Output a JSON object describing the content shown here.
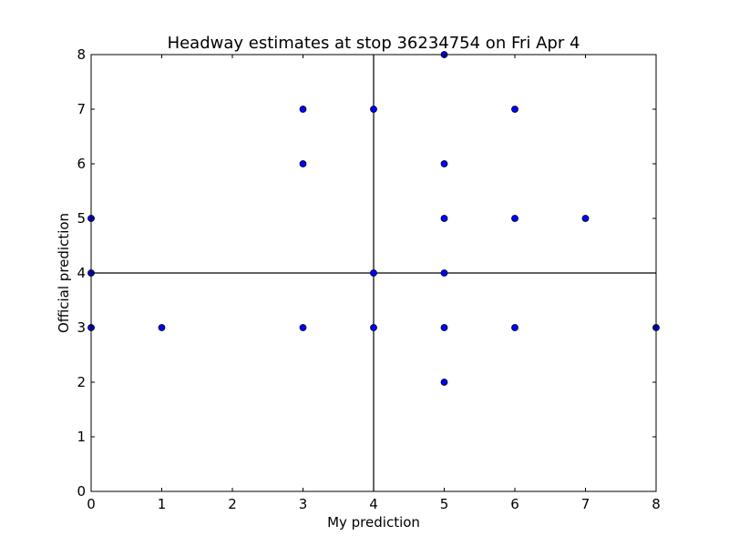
{
  "chart_data": {
    "type": "scatter",
    "title": "Headway estimates at stop 36234754 on Fri Apr 4",
    "xlabel": "My prediction",
    "ylabel": "Official prediction",
    "xlim": [
      0,
      8
    ],
    "ylim": [
      0,
      8
    ],
    "xticks": [
      "0",
      "1",
      "2",
      "3",
      "4",
      "5",
      "6",
      "7",
      "8"
    ],
    "yticks": [
      "0",
      "1",
      "2",
      "3",
      "4",
      "5",
      "6",
      "7",
      "8"
    ],
    "grid": false,
    "reference_lines": {
      "x": 4,
      "y": 4
    },
    "point_color": "#0000ff",
    "point_edge_color": "#000000",
    "points": [
      {
        "x": 0,
        "y": 5
      },
      {
        "x": 0,
        "y": 4
      },
      {
        "x": 0,
        "y": 3
      },
      {
        "x": 1,
        "y": 3
      },
      {
        "x": 3,
        "y": 7
      },
      {
        "x": 3,
        "y": 6
      },
      {
        "x": 3,
        "y": 3
      },
      {
        "x": 4,
        "y": 7
      },
      {
        "x": 4,
        "y": 4
      },
      {
        "x": 4,
        "y": 3
      },
      {
        "x": 5,
        "y": 8
      },
      {
        "x": 5,
        "y": 6
      },
      {
        "x": 5,
        "y": 5
      },
      {
        "x": 5,
        "y": 4
      },
      {
        "x": 5,
        "y": 3
      },
      {
        "x": 5,
        "y": 2
      },
      {
        "x": 6,
        "y": 7
      },
      {
        "x": 6,
        "y": 5
      },
      {
        "x": 6,
        "y": 3
      },
      {
        "x": 7,
        "y": 5
      },
      {
        "x": 8,
        "y": 3
      }
    ]
  }
}
